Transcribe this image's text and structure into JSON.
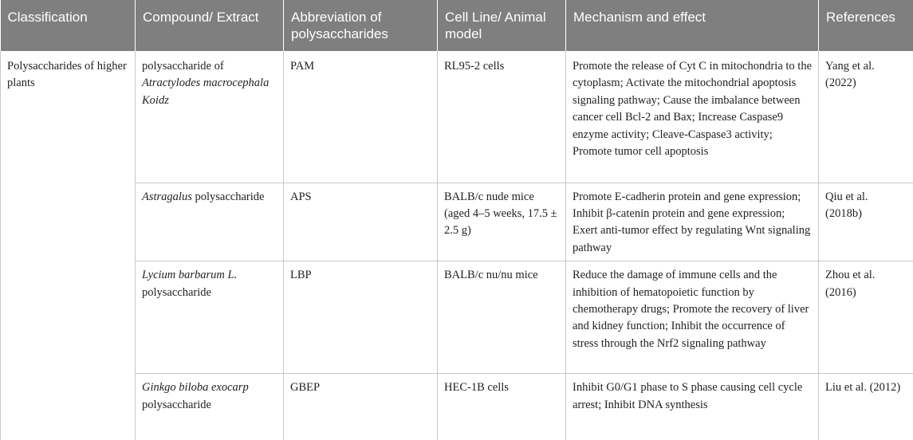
{
  "headers": {
    "classification": "Classification",
    "compound": "Compound/ Extract",
    "abbreviation": "Abbreviation of polysaccharides",
    "cell_line": "Cell Line/ Animal model",
    "mechanism": "Mechanism and effect",
    "references": "References"
  },
  "classification": "Polysaccharides of higher plants",
  "rows": [
    {
      "compound_prefix": "polysaccharide of ",
      "compound_italic": "Atractylodes macrocephala Koidz",
      "compound_suffix": "",
      "abbreviation": "PAM",
      "cell_line": "RL95-2 cells",
      "mechanism": "Promote the release of Cyt C in mitochondria to the cytoplasm; Activate the mitochondrial apoptosis signaling pathway; Cause the imbalance between cancer cell Bcl-2 and Bax; Increase Caspase9 enzyme activity; Cleave-Caspase3 activity; Promote tumor cell apoptosis",
      "reference": "Yang et al. (2022)"
    },
    {
      "compound_prefix": "",
      "compound_italic": "Astragalus",
      "compound_suffix": " polysaccharide",
      "abbreviation": "APS",
      "cell_line": "BALB/c nude mice (aged 4–5 weeks, 17.5 ± 2.5 g)",
      "mechanism": "Promote E-cadherin protein and gene expression; Inhibit β-catenin protein and gene expression; Exert anti-tumor effect by regulating Wnt signaling pathway",
      "reference": "Qiu et al. (2018b)"
    },
    {
      "compound_prefix": "",
      "compound_italic": "Lycium barbarum L.",
      "compound_suffix": " polysaccharide",
      "abbreviation": "LBP",
      "cell_line": "BALB/c nu/nu mice",
      "mechanism": "Reduce the damage of immune cells and the inhibition of hematopoietic function by chemotherapy drugs; Promote the recovery of liver and kidney function; Inhibit the occurrence of stress through the Nrf2 signaling pathway",
      "reference": "Zhou et al. (2016)"
    },
    {
      "compound_prefix": "",
      "compound_italic": "Ginkgo biloba exocarp",
      "compound_suffix": " polysaccharide",
      "abbreviation": "GBEP",
      "cell_line": "HEC-1B cells",
      "mechanism": "Inhibit G0/G1 phase to S phase causing cell cycle arrest; Inhibit DNA synthesis",
      "reference": "Liu et al. (2012)"
    }
  ],
  "colors": {
    "header_bg": "#7f7f7f",
    "header_text": "#ffffff",
    "grid_line": "#c8c8c8",
    "body_text": "#222222"
  }
}
